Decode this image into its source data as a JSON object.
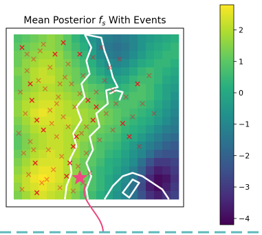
{
  "chart_data": {
    "type": "heatmap",
    "title_prefix": "Mean Posterior ",
    "title_symbol": "f",
    "title_subscript": "s",
    "title_suffix": " With Events",
    "grid_size": 20,
    "colormap": "viridis",
    "colorbar": {
      "vmin": -4.2,
      "vmax": 2.8,
      "ticks": [
        -4,
        -3,
        -2,
        -1,
        0,
        1,
        2
      ],
      "tick_labels": [
        "−4",
        "−3",
        "−2",
        "−1",
        "0",
        "1",
        "2"
      ]
    },
    "values": [
      [
        0.8,
        1.0,
        1.2,
        1.4,
        1.6,
        1.4,
        1.0,
        0.4,
        0.0,
        -0.6,
        -1.0,
        -1.2,
        -1.4,
        -1.2,
        -1.0,
        -0.6,
        -0.4,
        -0.2,
        0.0,
        0.2
      ],
      [
        1.0,
        1.2,
        1.4,
        1.6,
        1.6,
        1.4,
        1.0,
        0.6,
        0.2,
        -0.4,
        -1.0,
        -1.4,
        -1.6,
        -1.4,
        -1.0,
        -0.6,
        -0.2,
        0.0,
        0.2,
        0.4
      ],
      [
        1.2,
        1.4,
        1.6,
        1.8,
        1.8,
        1.6,
        1.2,
        0.8,
        0.4,
        -0.2,
        -0.8,
        -1.2,
        -1.4,
        -1.2,
        -0.8,
        -0.4,
        0.0,
        0.2,
        0.4,
        0.4
      ],
      [
        1.2,
        1.6,
        1.8,
        2.0,
        2.0,
        1.6,
        1.4,
        1.0,
        0.6,
        0.2,
        -0.4,
        -0.8,
        -1.0,
        -0.8,
        -0.4,
        0.0,
        0.2,
        0.4,
        0.4,
        0.2
      ],
      [
        1.4,
        1.6,
        2.0,
        2.2,
        2.0,
        1.8,
        1.4,
        1.2,
        0.8,
        0.4,
        0.0,
        -0.4,
        -0.6,
        -0.4,
        0.0,
        0.4,
        0.6,
        0.4,
        0.2,
        0.0
      ],
      [
        1.2,
        1.6,
        2.0,
        2.2,
        2.2,
        1.8,
        1.6,
        1.2,
        1.0,
        0.6,
        0.4,
        0.0,
        -0.2,
        0.0,
        0.4,
        0.6,
        0.6,
        0.4,
        0.0,
        -0.2
      ],
      [
        1.2,
        1.6,
        1.8,
        2.0,
        2.0,
        1.8,
        1.6,
        1.4,
        1.2,
        1.0,
        0.8,
        0.4,
        0.2,
        0.4,
        0.6,
        0.8,
        0.6,
        0.2,
        -0.2,
        -0.4
      ],
      [
        1.4,
        1.8,
        2.0,
        2.2,
        2.2,
        2.0,
        1.8,
        1.6,
        1.4,
        1.2,
        1.0,
        0.8,
        0.6,
        0.6,
        0.8,
        0.8,
        0.6,
        0.2,
        -0.2,
        -0.6
      ],
      [
        1.6,
        2.0,
        2.2,
        2.4,
        2.4,
        2.2,
        2.0,
        1.8,
        1.6,
        1.4,
        1.2,
        1.0,
        0.8,
        0.8,
        0.8,
        0.6,
        0.4,
        0.0,
        -0.4,
        -0.8
      ],
      [
        1.6,
        2.0,
        2.4,
        2.6,
        2.4,
        2.2,
        2.0,
        2.0,
        1.8,
        1.6,
        1.4,
        1.2,
        1.0,
        0.8,
        0.6,
        0.4,
        0.2,
        -0.2,
        -0.6,
        -1.0
      ],
      [
        1.4,
        1.8,
        2.2,
        2.4,
        2.4,
        2.2,
        2.2,
        2.0,
        1.8,
        1.6,
        1.4,
        1.2,
        1.0,
        0.6,
        0.4,
        0.2,
        0.0,
        -0.4,
        -0.8,
        -1.2
      ],
      [
        1.2,
        1.6,
        2.0,
        2.2,
        2.2,
        2.2,
        2.0,
        1.8,
        1.6,
        1.4,
        1.2,
        1.0,
        0.8,
        0.4,
        0.2,
        0.0,
        -0.4,
        -0.8,
        -1.2,
        -1.4
      ],
      [
        1.0,
        1.4,
        1.8,
        2.0,
        2.2,
        2.2,
        2.0,
        1.8,
        1.6,
        1.4,
        1.0,
        0.8,
        0.6,
        0.2,
        0.0,
        -0.4,
        -0.8,
        -1.2,
        -1.6,
        -1.8
      ],
      [
        1.0,
        1.4,
        1.8,
        2.0,
        2.2,
        2.2,
        2.0,
        1.8,
        1.4,
        1.2,
        0.8,
        0.6,
        0.4,
        0.0,
        -0.4,
        -0.8,
        -1.2,
        -1.6,
        -2.0,
        -2.2
      ],
      [
        1.2,
        1.6,
        2.0,
        2.2,
        2.4,
        2.2,
        2.0,
        1.8,
        1.4,
        1.0,
        0.8,
        0.4,
        0.2,
        -0.2,
        -0.6,
        -1.0,
        -1.6,
        -2.2,
        -2.4,
        -2.4
      ],
      [
        1.4,
        1.8,
        2.2,
        2.4,
        2.4,
        2.4,
        2.0,
        1.6,
        1.2,
        1.0,
        0.6,
        0.2,
        0.0,
        -0.4,
        -0.8,
        -1.6,
        -2.4,
        -3.0,
        -3.0,
        -2.8
      ],
      [
        1.6,
        2.0,
        2.4,
        2.6,
        2.6,
        2.4,
        2.0,
        1.6,
        1.2,
        0.8,
        0.4,
        0.2,
        -0.2,
        -0.6,
        -1.2,
        -2.0,
        -3.0,
        -3.6,
        -3.4,
        -3.0
      ],
      [
        1.8,
        2.2,
        2.6,
        2.8,
        2.6,
        2.4,
        2.0,
        1.6,
        1.2,
        0.8,
        0.4,
        0.0,
        -0.4,
        -0.8,
        -1.4,
        -2.4,
        -3.4,
        -4.0,
        -3.8,
        -3.2
      ],
      [
        1.6,
        2.2,
        2.4,
        2.6,
        2.4,
        2.2,
        2.0,
        1.6,
        1.2,
        0.8,
        0.4,
        0.0,
        -0.4,
        -1.0,
        -1.6,
        -2.6,
        -3.6,
        -4.0,
        -3.6,
        -3.0
      ],
      [
        1.4,
        1.8,
        2.2,
        2.4,
        2.2,
        2.0,
        1.8,
        1.4,
        1.0,
        0.6,
        0.2,
        -0.2,
        -0.6,
        -1.0,
        -1.6,
        -2.4,
        -3.2,
        -3.6,
        -3.2,
        -2.8
      ]
    ],
    "events": [
      [
        0.05,
        0.08
      ],
      [
        0.12,
        0.15
      ],
      [
        0.18,
        0.06
      ],
      [
        0.25,
        0.12
      ],
      [
        0.08,
        0.22
      ],
      [
        0.15,
        0.28
      ],
      [
        0.22,
        0.2
      ],
      [
        0.3,
        0.05
      ],
      [
        0.33,
        0.18
      ],
      [
        0.04,
        0.35
      ],
      [
        0.11,
        0.4
      ],
      [
        0.19,
        0.33
      ],
      [
        0.27,
        0.38
      ],
      [
        0.35,
        0.3
      ],
      [
        0.4,
        0.12
      ],
      [
        0.42,
        0.25
      ],
      [
        0.07,
        0.48
      ],
      [
        0.14,
        0.52
      ],
      [
        0.22,
        0.46
      ],
      [
        0.3,
        0.5
      ],
      [
        0.37,
        0.44
      ],
      [
        0.45,
        0.4
      ],
      [
        0.5,
        0.35
      ],
      [
        0.55,
        0.28
      ],
      [
        0.03,
        0.6
      ],
      [
        0.1,
        0.65
      ],
      [
        0.18,
        0.58
      ],
      [
        0.26,
        0.62
      ],
      [
        0.33,
        0.56
      ],
      [
        0.41,
        0.6
      ],
      [
        0.48,
        0.52
      ],
      [
        0.56,
        0.48
      ],
      [
        0.62,
        0.42
      ],
      [
        0.68,
        0.38
      ],
      [
        0.06,
        0.72
      ],
      [
        0.13,
        0.78
      ],
      [
        0.21,
        0.7
      ],
      [
        0.29,
        0.74
      ],
      [
        0.36,
        0.68
      ],
      [
        0.44,
        0.72
      ],
      [
        0.52,
        0.64
      ],
      [
        0.6,
        0.58
      ],
      [
        0.66,
        0.54
      ],
      [
        0.72,
        0.5
      ],
      [
        0.09,
        0.85
      ],
      [
        0.17,
        0.9
      ],
      [
        0.24,
        0.82
      ],
      [
        0.32,
        0.86
      ],
      [
        0.39,
        0.8
      ],
      [
        0.46,
        0.84
      ],
      [
        0.05,
        0.94
      ],
      [
        0.14,
        0.96
      ],
      [
        0.28,
        0.93
      ],
      [
        0.36,
        0.95
      ],
      [
        0.58,
        0.2
      ],
      [
        0.64,
        0.15
      ],
      [
        0.75,
        0.3
      ],
      [
        0.82,
        0.25
      ],
      [
        0.78,
        0.42
      ],
      [
        0.85,
        0.48
      ],
      [
        0.7,
        0.62
      ],
      [
        0.76,
        0.68
      ],
      [
        0.48,
        0.14
      ],
      [
        0.53,
        0.08
      ],
      [
        0.16,
        0.1
      ],
      [
        0.1,
        0.3
      ],
      [
        0.23,
        0.54
      ],
      [
        0.4,
        0.36
      ],
      [
        0.31,
        0.26
      ],
      [
        0.44,
        0.56
      ],
      [
        0.38,
        0.62
      ],
      [
        0.26,
        0.42
      ],
      [
        0.2,
        0.88
      ],
      [
        0.12,
        0.7
      ],
      [
        0.34,
        0.78
      ],
      [
        0.42,
        0.9
      ],
      [
        0.08,
        0.12
      ],
      [
        0.28,
        0.3
      ],
      [
        0.5,
        0.44
      ],
      [
        0.6,
        0.34
      ]
    ],
    "events_highlighted": [
      0,
      3,
      7,
      10,
      14,
      17,
      21,
      26,
      30,
      35,
      38,
      42,
      47,
      51,
      56,
      60,
      65,
      70,
      74,
      78
    ],
    "boundaries": [
      {
        "closed": false,
        "points": [
          [
            0.43,
            0.0
          ],
          [
            0.47,
            0.08
          ],
          [
            0.44,
            0.16
          ],
          [
            0.46,
            0.24
          ],
          [
            0.41,
            0.3
          ],
          [
            0.43,
            0.38
          ],
          [
            0.38,
            0.44
          ],
          [
            0.41,
            0.52
          ],
          [
            0.36,
            0.6
          ],
          [
            0.38,
            0.68
          ],
          [
            0.34,
            0.76
          ],
          [
            0.35,
            0.84
          ],
          [
            0.32,
            0.92
          ],
          [
            0.31,
            1.0
          ]
        ]
      },
      {
        "closed": false,
        "points": [
          [
            0.43,
            0.0
          ],
          [
            0.53,
            0.02
          ],
          [
            0.55,
            0.1
          ],
          [
            0.58,
            0.18
          ],
          [
            0.6,
            0.26
          ],
          [
            0.63,
            0.32
          ],
          [
            0.56,
            0.34
          ],
          [
            0.57,
            0.42
          ],
          [
            0.5,
            0.48
          ],
          [
            0.52,
            0.56
          ],
          [
            0.46,
            0.62
          ],
          [
            0.48,
            0.7
          ],
          [
            0.44,
            0.78
          ],
          [
            0.47,
            0.86
          ],
          [
            0.44,
            0.94
          ],
          [
            0.45,
            1.0
          ]
        ]
      },
      {
        "closed": false,
        "points": [
          [
            0.58,
            0.36
          ],
          [
            0.62,
            0.34
          ],
          [
            0.66,
            0.35
          ],
          [
            0.64,
            0.4
          ]
        ]
      },
      {
        "closed": false,
        "points": [
          [
            0.55,
            1.0
          ],
          [
            0.6,
            0.92
          ],
          [
            0.66,
            0.86
          ],
          [
            0.72,
            0.84
          ],
          [
            0.78,
            0.86
          ],
          [
            0.84,
            0.9
          ],
          [
            0.9,
            0.94
          ],
          [
            0.94,
            1.0
          ]
        ]
      },
      {
        "closed": true,
        "points": [
          [
            0.66,
            0.96
          ],
          [
            0.72,
            0.88
          ],
          [
            0.76,
            0.9
          ],
          [
            0.7,
            0.99
          ]
        ]
      }
    ],
    "star": [
      0.4,
      0.87
    ],
    "callout_path": [
      [
        0.4,
        0.87
      ]
    ]
  }
}
